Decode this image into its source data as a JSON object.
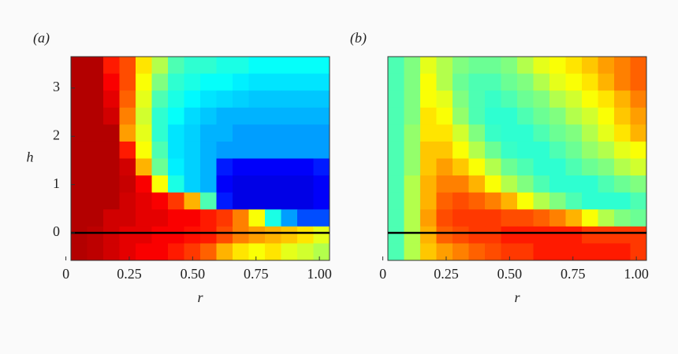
{
  "chart_data": [
    {
      "type": "heatmap",
      "panel_label": "(a)",
      "x_label": "r",
      "y_label": "h",
      "colormap": "jet",
      "xlim": [
        0.02,
        1.04
      ],
      "ylim": [
        -0.57,
        3.65
      ],
      "xticks": [
        0,
        0.25,
        {
          "value": 0.5,
          "label": "0.50"
        },
        0.75,
        {
          "value": 1,
          "label": "1.00"
        }
      ],
      "yticks": [
        0,
        1,
        2,
        3
      ],
      "hline": 0,
      "values": [
        [
          0.95,
          0.95,
          0.85,
          0.8,
          0.65,
          0.55,
          0.45,
          0.42,
          0.42,
          0.4,
          0.4,
          0.38,
          0.38,
          0.38,
          0.38,
          0.38
        ],
        [
          0.95,
          0.95,
          0.88,
          0.8,
          0.62,
          0.5,
          0.42,
          0.4,
          0.38,
          0.38,
          0.36,
          0.35,
          0.35,
          0.35,
          0.35,
          0.35
        ],
        [
          0.95,
          0.95,
          0.9,
          0.78,
          0.6,
          0.45,
          0.4,
          0.37,
          0.35,
          0.34,
          0.33,
          0.32,
          0.32,
          0.32,
          0.32,
          0.32
        ],
        [
          0.95,
          0.95,
          0.92,
          0.75,
          0.58,
          0.42,
          0.38,
          0.34,
          0.32,
          0.3,
          0.3,
          0.3,
          0.3,
          0.3,
          0.3,
          0.3
        ],
        [
          0.95,
          0.95,
          0.95,
          0.72,
          0.6,
          0.42,
          0.35,
          0.33,
          0.3,
          0.3,
          0.28,
          0.28,
          0.28,
          0.28,
          0.28,
          0.28
        ],
        [
          0.95,
          0.95,
          0.95,
          0.85,
          0.62,
          0.45,
          0.35,
          0.33,
          0.3,
          0.28,
          0.28,
          0.28,
          0.28,
          0.28,
          0.28,
          0.28
        ],
        [
          0.95,
          0.95,
          0.95,
          0.92,
          0.7,
          0.48,
          0.36,
          0.33,
          0.3,
          0.15,
          0.12,
          0.12,
          0.12,
          0.12,
          0.12,
          0.15
        ],
        [
          0.95,
          0.95,
          0.95,
          0.93,
          0.88,
          0.62,
          0.4,
          0.33,
          0.3,
          0.12,
          0.1,
          0.1,
          0.1,
          0.1,
          0.1,
          0.12
        ],
        [
          0.95,
          0.95,
          0.95,
          0.92,
          0.9,
          0.88,
          0.82,
          0.7,
          0.45,
          0.15,
          0.1,
          0.1,
          0.1,
          0.1,
          0.1,
          0.12
        ],
        [
          0.95,
          0.95,
          0.92,
          0.92,
          0.9,
          0.9,
          0.88,
          0.88,
          0.85,
          0.82,
          0.75,
          0.62,
          0.4,
          0.28,
          0.2,
          0.2
        ],
        [
          0.95,
          0.94,
          0.92,
          0.9,
          0.9,
          0.88,
          0.88,
          0.86,
          0.85,
          0.8,
          0.75,
          0.72,
          0.7,
          0.68,
          0.65,
          0.6
        ],
        [
          0.95,
          0.94,
          0.92,
          0.9,
          0.88,
          0.88,
          0.85,
          0.82,
          0.78,
          0.7,
          0.65,
          0.62,
          0.65,
          0.6,
          0.58,
          0.55
        ]
      ]
    },
    {
      "type": "heatmap",
      "panel_label": "(b)",
      "x_label": "r",
      "colormap": "jet",
      "xlim": [
        0.02,
        1.04
      ],
      "ylim": [
        -0.57,
        3.65
      ],
      "xticks": [
        0,
        0.25,
        {
          "value": 0.5,
          "label": "0.50"
        },
        0.75,
        {
          "value": 1,
          "label": "1.00"
        }
      ],
      "hline": 0,
      "values": [
        [
          0.45,
          0.5,
          0.6,
          0.55,
          0.5,
          0.48,
          0.48,
          0.5,
          0.55,
          0.6,
          0.62,
          0.65,
          0.68,
          0.72,
          0.75,
          0.78
        ],
        [
          0.45,
          0.5,
          0.62,
          0.55,
          0.48,
          0.45,
          0.45,
          0.48,
          0.5,
          0.55,
          0.6,
          0.62,
          0.65,
          0.7,
          0.75,
          0.78
        ],
        [
          0.45,
          0.5,
          0.62,
          0.6,
          0.5,
          0.45,
          0.43,
          0.45,
          0.48,
          0.5,
          0.55,
          0.58,
          0.62,
          0.65,
          0.7,
          0.75
        ],
        [
          0.45,
          0.5,
          0.65,
          0.62,
          0.52,
          0.45,
          0.42,
          0.42,
          0.45,
          0.48,
          0.5,
          0.55,
          0.58,
          0.62,
          0.68,
          0.72
        ],
        [
          0.45,
          0.52,
          0.65,
          0.65,
          0.58,
          0.5,
          0.43,
          0.42,
          0.42,
          0.45,
          0.48,
          0.5,
          0.55,
          0.6,
          0.65,
          0.7
        ],
        [
          0.45,
          0.52,
          0.68,
          0.68,
          0.62,
          0.55,
          0.48,
          0.43,
          0.42,
          0.42,
          0.45,
          0.48,
          0.52,
          0.55,
          0.6,
          0.62
        ],
        [
          0.45,
          0.52,
          0.68,
          0.72,
          0.68,
          0.62,
          0.55,
          0.48,
          0.45,
          0.42,
          0.42,
          0.45,
          0.48,
          0.5,
          0.55,
          0.58
        ],
        [
          0.45,
          0.55,
          0.7,
          0.75,
          0.75,
          0.7,
          0.62,
          0.55,
          0.5,
          0.45,
          0.42,
          0.42,
          0.42,
          0.45,
          0.48,
          0.5
        ],
        [
          0.45,
          0.55,
          0.7,
          0.78,
          0.8,
          0.78,
          0.75,
          0.7,
          0.62,
          0.55,
          0.5,
          0.45,
          0.42,
          0.42,
          0.42,
          0.45
        ],
        [
          0.45,
          0.55,
          0.72,
          0.8,
          0.82,
          0.82,
          0.82,
          0.8,
          0.8,
          0.78,
          0.75,
          0.7,
          0.62,
          0.55,
          0.5,
          0.48
        ],
        [
          0.45,
          0.55,
          0.7,
          0.78,
          0.8,
          0.82,
          0.82,
          0.85,
          0.85,
          0.85,
          0.85,
          0.85,
          0.82,
          0.82,
          0.82,
          0.82
        ],
        [
          0.45,
          0.55,
          0.68,
          0.72,
          0.75,
          0.78,
          0.8,
          0.82,
          0.82,
          0.85,
          0.85,
          0.85,
          0.85,
          0.85,
          0.85,
          0.82
        ]
      ]
    }
  ]
}
